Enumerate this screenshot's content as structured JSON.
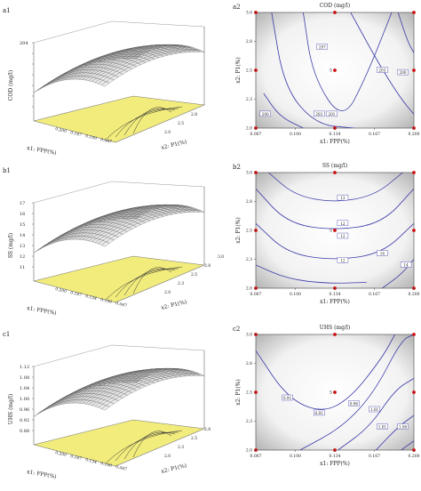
{
  "chart_data": [
    {
      "panel": "a1",
      "type": "surface",
      "zlabel": "COD (mg/l)",
      "z_ticks": [
        "204",
        "",
        "",
        "",
        "",
        "",
        ""
      ],
      "x_label": "x1: FPP(%)",
      "x_ticks": [
        "0.200",
        "0.167",
        "0.100",
        "0.067"
      ],
      "y_label": "x2: P1(%)",
      "y_ticks": [
        "2.0",
        "2.5",
        "2.8"
      ]
    },
    {
      "panel": "a2",
      "type": "contour",
      "title": "COD (mg/l)",
      "xlabel": "x1: FPP(%)",
      "ylabel": "x2: P1(%)",
      "x_ticks": [
        "0.067",
        "0.100",
        "0.134",
        "0.167",
        "0.200"
      ],
      "y_ticks": [
        "2.0",
        "2.3",
        "2.5",
        "2.8",
        "3.0"
      ],
      "xlim": [
        0.067,
        0.2
      ],
      "ylim": [
        2.0,
        3.0
      ],
      "contour_labels": [
        "197",
        "200",
        "201",
        "203",
        "200",
        "203"
      ],
      "center_point_label": "5"
    },
    {
      "panel": "b1",
      "type": "surface",
      "zlabel": "SS (mg/l)",
      "z_ticks": [
        "17",
        "16",
        "15",
        "14",
        "13",
        "12",
        "11"
      ],
      "x_label": "x1: FPP(%)",
      "x_ticks": [
        "0.200",
        "0.167",
        "0.134",
        "0.100",
        "0.067"
      ],
      "y_label": "x2: P1(%)",
      "y_ticks": [
        "2.0",
        "2.3",
        "2.5",
        "2.8",
        "3.0"
      ]
    },
    {
      "panel": "b2",
      "type": "contour",
      "title": "SS (mg/l)",
      "xlabel": "x1: FPP(%)",
      "ylabel": "x2: P1(%)",
      "x_ticks": [
        "0.067",
        "0.100",
        "0.134",
        "0.167",
        "0.200"
      ],
      "y_ticks": [
        "2.0",
        "2.3",
        "2.5",
        "2.8",
        "3.0"
      ],
      "xlim": [
        0.067,
        0.2
      ],
      "ylim": [
        2.0,
        3.0
      ],
      "contour_labels": [
        "13",
        "12",
        "12",
        "12",
        "14",
        "14"
      ],
      "center_point_label": "5"
    },
    {
      "panel": "c1",
      "type": "surface",
      "zlabel": "UHS (mg/l)",
      "z_ticks": [
        "1.12",
        "1.08",
        "1.04",
        "1.00",
        "0.96",
        "0.92",
        "0.88"
      ],
      "x_label": "x1: FPP(%)",
      "x_ticks": [
        "0.200",
        "0.167",
        "0.134",
        "0.100",
        "0.067"
      ],
      "y_label": "x2: P1(%)",
      "y_ticks": [
        "2.0",
        "2.3",
        "2.5",
        "2.8"
      ]
    },
    {
      "panel": "c2",
      "type": "contour",
      "title": "UHS (mg/l)",
      "xlabel": "x1: FPP(%)",
      "ylabel": "x2: P1(%)",
      "x_ticks": [
        "0.067",
        "0.100",
        "0.134",
        "0.167",
        "0.200"
      ],
      "y_ticks": [
        "2.0",
        "2.3",
        "2.5",
        "2.8",
        "3.0"
      ],
      "xlim": [
        0.067,
        0.2
      ],
      "ylim": [
        2.0,
        3.0
      ],
      "contour_labels": [
        "0.91",
        "0.91",
        "0.96",
        "1.01",
        "1.01",
        "1.06"
      ],
      "center_point_label": "5"
    }
  ],
  "colors": {
    "contour_line": "#3a3aa8",
    "base_plane": "#f2ec7c",
    "design_point": "#cc1111",
    "mesh_line": "#555555"
  }
}
